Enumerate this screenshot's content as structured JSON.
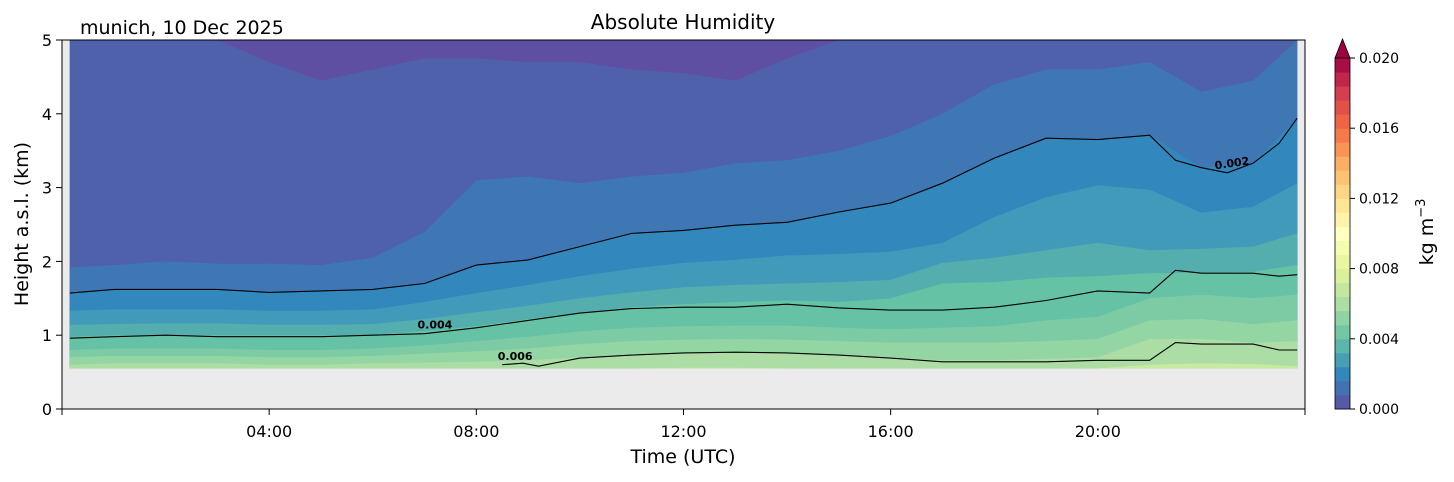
{
  "chart_data": {
    "type": "heatmap",
    "subtype": "filled-contour",
    "title": "Absolute Humidity",
    "subtitle": "munich, 10 Dec 2025",
    "xlabel": "Time (UTC)",
    "ylabel": "Height a.s.l. (km)",
    "xlim_hours": [
      0,
      24
    ],
    "ylim": [
      0,
      5
    ],
    "x_ticks": [
      {
        "value": 0,
        "label": ""
      },
      {
        "value": 4,
        "label": "04:00"
      },
      {
        "value": 8,
        "label": "08:00"
      },
      {
        "value": 12,
        "label": "12:00"
      },
      {
        "value": 16,
        "label": "16:00"
      },
      {
        "value": 20,
        "label": "20:00"
      },
      {
        "value": 24,
        "label": ""
      }
    ],
    "y_ticks": [
      {
        "value": 0,
        "label": "0"
      },
      {
        "value": 1,
        "label": "1"
      },
      {
        "value": 2,
        "label": "2"
      },
      {
        "value": 3,
        "label": "3"
      },
      {
        "value": 4,
        "label": "4"
      },
      {
        "value": 5,
        "label": "5"
      }
    ],
    "missing_color": "#ebebeb",
    "data_bottom_km": 0.55,
    "time_grid_hours": [
      0.15,
      1,
      2,
      3,
      4,
      5,
      6,
      7,
      8,
      9,
      10,
      11,
      12,
      13,
      14,
      15,
      16,
      17,
      18,
      19,
      20,
      21,
      22,
      23,
      23.85
    ],
    "top_color": "#5e4fa2",
    "band_boundaries": [
      {
        "color_below": "#4f61aa",
        "heights_km": [
          5.1,
          5.1,
          5.1,
          5.1,
          4.7,
          4.45,
          4.6,
          4.75,
          4.75,
          4.7,
          4.7,
          4.6,
          4.55,
          4.45,
          4.75,
          5.05,
          5.1,
          5.1,
          5.1,
          5.1,
          5.1,
          5.1,
          5.1,
          5.1,
          5.1
        ]
      },
      {
        "color_below": "#3f76b4",
        "heights_km": [
          1.92,
          1.95,
          2.0,
          1.97,
          1.97,
          1.95,
          2.05,
          2.4,
          3.1,
          3.15,
          3.06,
          3.15,
          3.2,
          3.33,
          3.37,
          3.5,
          3.7,
          4.0,
          4.4,
          4.6,
          4.6,
          4.7,
          4.3,
          4.45,
          5.0
        ]
      },
      {
        "color_below": "#3288bd",
        "heights_km": [
          1.57,
          1.62,
          1.62,
          1.62,
          1.58,
          1.6,
          1.62,
          1.7,
          1.95,
          2.02,
          2.2,
          2.38,
          2.42,
          2.49,
          2.53,
          2.67,
          2.79,
          3.06,
          3.4,
          3.67,
          3.65,
          3.71,
          3.27,
          3.33,
          3.94
        ]
      },
      {
        "color_below": "#429aba",
        "heights_km": [
          1.33,
          1.35,
          1.35,
          1.35,
          1.33,
          1.33,
          1.35,
          1.45,
          1.57,
          1.68,
          1.8,
          1.9,
          1.98,
          2.02,
          2.08,
          2.1,
          2.13,
          2.25,
          2.6,
          2.87,
          3.03,
          2.97,
          2.66,
          2.74,
          3.06
        ]
      },
      {
        "color_below": "#54aead",
        "heights_km": [
          1.14,
          1.15,
          1.16,
          1.16,
          1.14,
          1.14,
          1.15,
          1.22,
          1.31,
          1.4,
          1.5,
          1.58,
          1.65,
          1.68,
          1.7,
          1.72,
          1.75,
          1.98,
          2.05,
          2.15,
          2.25,
          2.15,
          2.17,
          2.2,
          2.38
        ]
      },
      {
        "color_below": "#66c2a5",
        "heights_km": [
          0.98,
          1.0,
          1.0,
          1.0,
          1.0,
          1.0,
          1.0,
          1.06,
          1.12,
          1.22,
          1.3,
          1.38,
          1.42,
          1.45,
          1.47,
          1.45,
          1.5,
          1.7,
          1.72,
          1.78,
          1.8,
          1.84,
          1.85,
          1.86,
          1.95
        ]
      },
      {
        "color_below": "#7dcba4",
        "heights_km": [
          0.8,
          0.82,
          0.82,
          0.82,
          0.8,
          0.8,
          0.82,
          0.86,
          0.92,
          0.98,
          1.05,
          1.1,
          1.12,
          1.13,
          1.13,
          1.1,
          1.08,
          1.1,
          1.12,
          1.2,
          1.25,
          1.5,
          1.55,
          1.5,
          1.55
        ]
      },
      {
        "color_below": "#93d5a3",
        "heights_km": [
          0.7,
          0.72,
          0.72,
          0.72,
          0.7,
          0.7,
          0.72,
          0.75,
          0.78,
          0.82,
          0.88,
          0.92,
          0.94,
          0.95,
          0.94,
          0.92,
          0.9,
          0.9,
          0.9,
          0.92,
          0.95,
          1.2,
          1.22,
          1.15,
          1.2
        ]
      },
      {
        "color_below": "#abdda4",
        "heights_km": [
          0.6,
          0.62,
          0.62,
          0.62,
          0.6,
          0.6,
          0.62,
          0.63,
          0.64,
          0.66,
          0.7,
          0.73,
          0.76,
          0.77,
          0.76,
          0.73,
          0.7,
          0.66,
          0.66,
          0.68,
          0.7,
          0.95,
          0.95,
          0.9,
          0.92
        ]
      },
      {
        "color_below": "#c8e9a0",
        "heights_km": [
          0.55,
          0.55,
          0.55,
          0.55,
          0.55,
          0.55,
          0.55,
          0.55,
          0.55,
          0.55,
          0.55,
          0.55,
          0.56,
          0.56,
          0.55,
          0.55,
          0.55,
          0.55,
          0.55,
          0.55,
          0.55,
          0.6,
          0.62,
          0.61,
          0.58
        ]
      }
    ],
    "contour_lines": [
      {
        "level": 0.002,
        "label": "0.002",
        "label_at_hour": 22.6,
        "x_hours": [
          0.15,
          1,
          2,
          3,
          4,
          5,
          6,
          7,
          8,
          9,
          10,
          11,
          12,
          13,
          14,
          15,
          16,
          17,
          18,
          19,
          20,
          21,
          21.5,
          22,
          22.5,
          23,
          23.5,
          23.85
        ],
        "heights_km": [
          1.57,
          1.62,
          1.62,
          1.62,
          1.58,
          1.6,
          1.62,
          1.7,
          1.95,
          2.02,
          2.2,
          2.38,
          2.42,
          2.49,
          2.53,
          2.67,
          2.79,
          3.06,
          3.4,
          3.67,
          3.65,
          3.71,
          3.37,
          3.27,
          3.2,
          3.33,
          3.6,
          3.94
        ]
      },
      {
        "level": 0.004,
        "label": "0.004",
        "label_at_hour": 7.2,
        "x_hours": [
          0.15,
          1,
          2,
          3,
          4,
          5,
          6,
          7,
          8,
          9,
          10,
          11,
          12,
          13,
          14,
          15,
          16,
          17,
          18,
          19,
          20,
          21,
          21.5,
          22,
          23,
          23.5,
          23.85
        ],
        "heights_km": [
          0.96,
          0.98,
          1.0,
          0.98,
          0.98,
          0.98,
          1.0,
          1.02,
          1.1,
          1.2,
          1.3,
          1.36,
          1.38,
          1.38,
          1.42,
          1.37,
          1.34,
          1.34,
          1.38,
          1.47,
          1.6,
          1.57,
          1.88,
          1.84,
          1.84,
          1.8,
          1.82
        ]
      },
      {
        "level": 0.006,
        "label": "0.006",
        "label_at_hour": 8.75,
        "x_hours": [
          8.5,
          8.9,
          9.2,
          10,
          11,
          12,
          13,
          14,
          15,
          16,
          17,
          18,
          19,
          20,
          21,
          21.5,
          22,
          23,
          23.5,
          23.85
        ],
        "heights_km": [
          0.6,
          0.62,
          0.58,
          0.69,
          0.73,
          0.76,
          0.77,
          0.76,
          0.73,
          0.69,
          0.64,
          0.64,
          0.64,
          0.66,
          0.66,
          0.9,
          0.88,
          0.88,
          0.8,
          0.8
        ]
      }
    ],
    "colorbar": {
      "label": "kg m",
      "label_exponent": "−3",
      "range": [
        0,
        0.02
      ],
      "n_bands": 25,
      "extend": "max",
      "extend_color": "#9e0142",
      "colormap": [
        "#5e4fa2",
        "#3288bd",
        "#66c2a5",
        "#abdda4",
        "#e6f598",
        "#ffffbf",
        "#fee08b",
        "#fdae61",
        "#f46d43",
        "#d53e4f",
        "#9e0142"
      ],
      "ticks": [
        {
          "value": 0.0,
          "label": "0.000"
        },
        {
          "value": 0.004,
          "label": "0.004"
        },
        {
          "value": 0.008,
          "label": "0.008"
        },
        {
          "value": 0.012,
          "label": "0.012"
        },
        {
          "value": 0.016,
          "label": "0.016"
        },
        {
          "value": 0.02,
          "label": "0.020"
        }
      ]
    }
  }
}
